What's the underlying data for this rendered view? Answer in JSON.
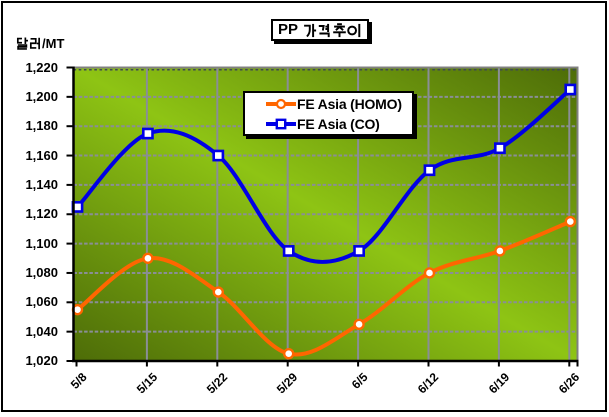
{
  "chart_data": {
    "type": "line",
    "title": "PP 가격추이",
    "y_unit_label": "달러/MT",
    "categories": [
      "5/8",
      "5/15",
      "5/22",
      "5/29",
      "6/5",
      "6/12",
      "6/19",
      "6/26"
    ],
    "series": [
      {
        "name": "FE Asia (HOMO)",
        "color": "#FF6600",
        "marker": "circle",
        "values": [
          1055,
          1090,
          1067,
          1025,
          1045,
          1080,
          1095,
          1115
        ]
      },
      {
        "name": "FE Asia (CO)",
        "color": "#0000E6",
        "marker": "square",
        "values": [
          1125,
          1175,
          1160,
          1095,
          1095,
          1150,
          1165,
          1205
        ]
      }
    ],
    "ylim": [
      1020,
      1220
    ],
    "y_tick_step": 20,
    "y_tick_labels": [
      "1,020",
      "1,040",
      "1,060",
      "1,080",
      "1,100",
      "1,120",
      "1,140",
      "1,160",
      "1,180",
      "1,200",
      "1,220"
    ],
    "smoothed_lines": true,
    "grid": "major-horizontal-dashed-and-vertical-solid",
    "legend_position": "inside-top-center",
    "plot_area_colors": {
      "gradient_bright": "#8ec414",
      "gradient_dark": "#4d6c08",
      "gridline": "#8a8e96",
      "border_gray": "#808080",
      "axis_black": "#000000"
    }
  }
}
